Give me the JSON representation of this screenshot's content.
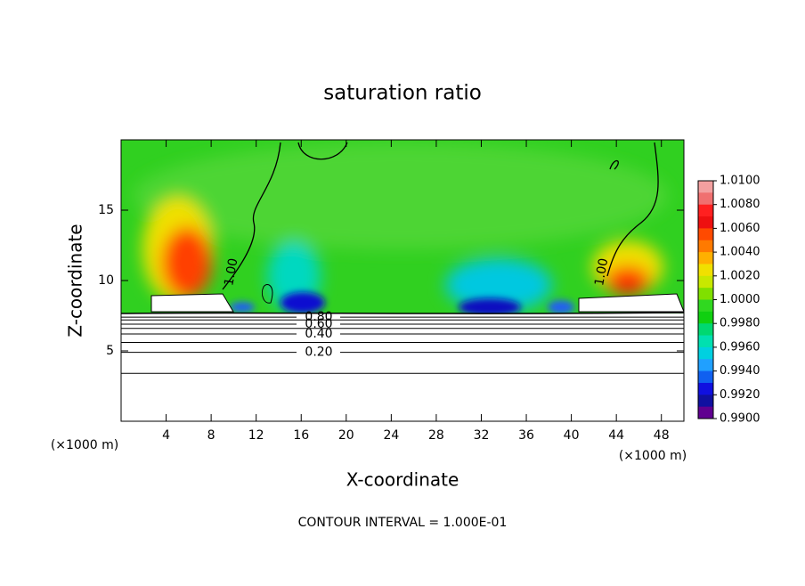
{
  "chart_data": {
    "type": "contour",
    "title": "saturation ratio",
    "xlabel": "X-coordinate",
    "ylabel": "Z-coordinate",
    "x_unit": "(×1000 m)",
    "note": "CONTOUR INTERVAL = 1.000E-01",
    "xlim": [
      0,
      50
    ],
    "xticks": [
      4,
      8,
      12,
      16,
      20,
      24,
      28,
      32,
      36,
      40,
      44,
      48
    ],
    "ylim": [
      0,
      20
    ],
    "yticks": [
      5,
      10,
      15
    ],
    "contours": [
      {
        "label": null,
        "z": 3.4
      },
      {
        "label": "0.20",
        "z": 4.9
      },
      {
        "label": null,
        "z": 5.6
      },
      {
        "label": "0.40",
        "z": 6.2
      },
      {
        "label": null,
        "z": 6.6
      },
      {
        "label": "0.60",
        "z": 6.9
      },
      {
        "label": null,
        "z": 7.2
      },
      {
        "label": "0.80",
        "z": 7.4
      }
    ],
    "annotations": [
      {
        "text": "1.00",
        "x": 9.8,
        "z": 10.6
      },
      {
        "text": "1.00",
        "x": 42.7,
        "z": 10.6
      }
    ],
    "colorbar": {
      "lim": [
        0.99,
        1.01
      ],
      "ticks": [
        {
          "value": 1.01,
          "label": "1.0100"
        },
        {
          "value": 1.008,
          "label": "1.0080"
        },
        {
          "value": 1.006,
          "label": "1.0060"
        },
        {
          "value": 1.004,
          "label": "1.0040"
        },
        {
          "value": 1.002,
          "label": "1.0020"
        },
        {
          "value": 1.0,
          "label": "1.0000"
        },
        {
          "value": 0.998,
          "label": "0.9980"
        },
        {
          "value": 0.996,
          "label": "0.9960"
        },
        {
          "value": 0.994,
          "label": "0.9940"
        },
        {
          "value": 0.992,
          "label": "0.9920"
        },
        {
          "value": 0.99,
          "label": "0.9900"
        }
      ],
      "colors": [
        "#f3a0a0",
        "#f07070",
        "#ff2020",
        "#ee1010",
        "#ff4a00",
        "#ff7a00",
        "#ffb000",
        "#f0e000",
        "#c8e800",
        "#80e000",
        "#30d820",
        "#10d010",
        "#00d870",
        "#00e0b0",
        "#00d0e0",
        "#20a0ff",
        "#1060f0",
        "#1010e0",
        "#1010a0",
        "#600090"
      ]
    }
  }
}
